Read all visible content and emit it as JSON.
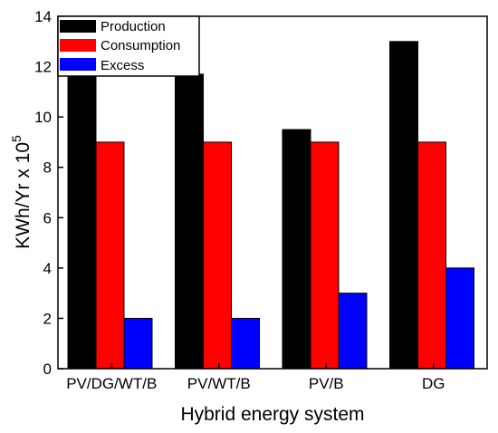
{
  "chart_data": {
    "type": "bar",
    "categories": [
      "PV/DG/WT/B",
      "PV/WT/B",
      "PV/B",
      "DG"
    ],
    "series": [
      {
        "name": "Production",
        "values": [
          11.7,
          11.7,
          9.5,
          13.0
        ],
        "color": "#000000"
      },
      {
        "name": "Consumption",
        "values": [
          9.0,
          9.0,
          9.0,
          9.0
        ],
        "color": "#ff0000"
      },
      {
        "name": "Excess",
        "values": [
          2.0,
          2.0,
          3.0,
          4.0
        ],
        "color": "#0000ff"
      }
    ],
    "xlabel": "Hybrid energy system",
    "ylabel_base": "KWh/Yr x 10",
    "ylabel_exp": "5",
    "ylim": [
      0,
      14
    ],
    "yticks": [
      "0",
      "2",
      "4",
      "6",
      "8",
      "10",
      "12",
      "14"
    ],
    "grid": false,
    "legend_position": "top-left"
  }
}
